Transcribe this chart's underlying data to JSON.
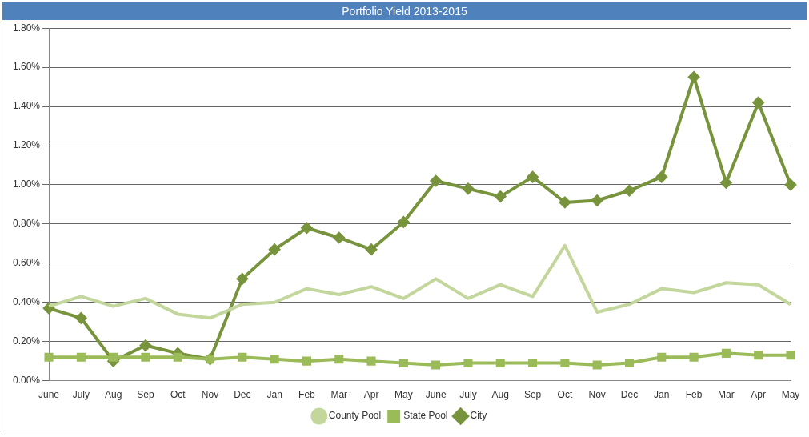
{
  "chart_data": {
    "type": "line",
    "title": "Portfolio Yield 2013-2015",
    "categories": [
      "June",
      "July",
      "Aug",
      "Sep",
      "Oct",
      "Nov",
      "Dec",
      "Jan",
      "Feb",
      "Mar",
      "Apr",
      "May",
      "June",
      "July",
      "Aug",
      "Sep",
      "Oct",
      "Nov",
      "Dec",
      "Jan",
      "Feb",
      "Mar",
      "Apr",
      "May"
    ],
    "series": [
      {
        "name": "City",
        "color": "#77933c",
        "marker": "diamond",
        "values": [
          0.37,
          0.32,
          0.1,
          0.18,
          0.14,
          0.11,
          0.52,
          0.67,
          0.78,
          0.73,
          0.67,
          0.81,
          1.02,
          0.98,
          0.94,
          1.04,
          0.91,
          0.92,
          0.97,
          1.04,
          1.55,
          1.01,
          1.42,
          1.0
        ]
      },
      {
        "name": "State Pool",
        "color": "#9bbb59",
        "marker": "square",
        "values": [
          0.12,
          0.12,
          0.12,
          0.12,
          0.12,
          0.11,
          0.12,
          0.11,
          0.1,
          0.11,
          0.1,
          0.09,
          0.08,
          0.09,
          0.09,
          0.09,
          0.09,
          0.08,
          0.09,
          0.12,
          0.12,
          0.14,
          0.13,
          0.13
        ]
      },
      {
        "name": "County Pool",
        "color": "#c3d69b",
        "marker": "none",
        "values": [
          0.38,
          0.43,
          0.38,
          0.42,
          0.34,
          0.32,
          0.39,
          0.4,
          0.47,
          0.44,
          0.48,
          0.42,
          0.52,
          0.42,
          0.49,
          0.43,
          0.69,
          0.35,
          0.39,
          0.47,
          0.45,
          0.5,
          0.49,
          0.39
        ]
      }
    ],
    "ylim": [
      0,
      1.8
    ],
    "yticks": [
      {
        "value": 0,
        "label": "0.00%"
      },
      {
        "value": 0.2,
        "label": "0.20%"
      },
      {
        "value": 0.4,
        "label": "0.40%"
      },
      {
        "value": 0.6,
        "label": "0.60%"
      },
      {
        "value": 0.8,
        "label": "0.80%"
      },
      {
        "value": 1.0,
        "label": "1.00%"
      },
      {
        "value": 1.2,
        "label": "1.20%"
      },
      {
        "value": 1.4,
        "label": "1.40%"
      },
      {
        "value": 1.6,
        "label": "1.60%"
      },
      {
        "value": 1.8,
        "label": "1.80%"
      }
    ],
    "grid": "y",
    "legend": "bottom",
    "line_style": "solid"
  }
}
